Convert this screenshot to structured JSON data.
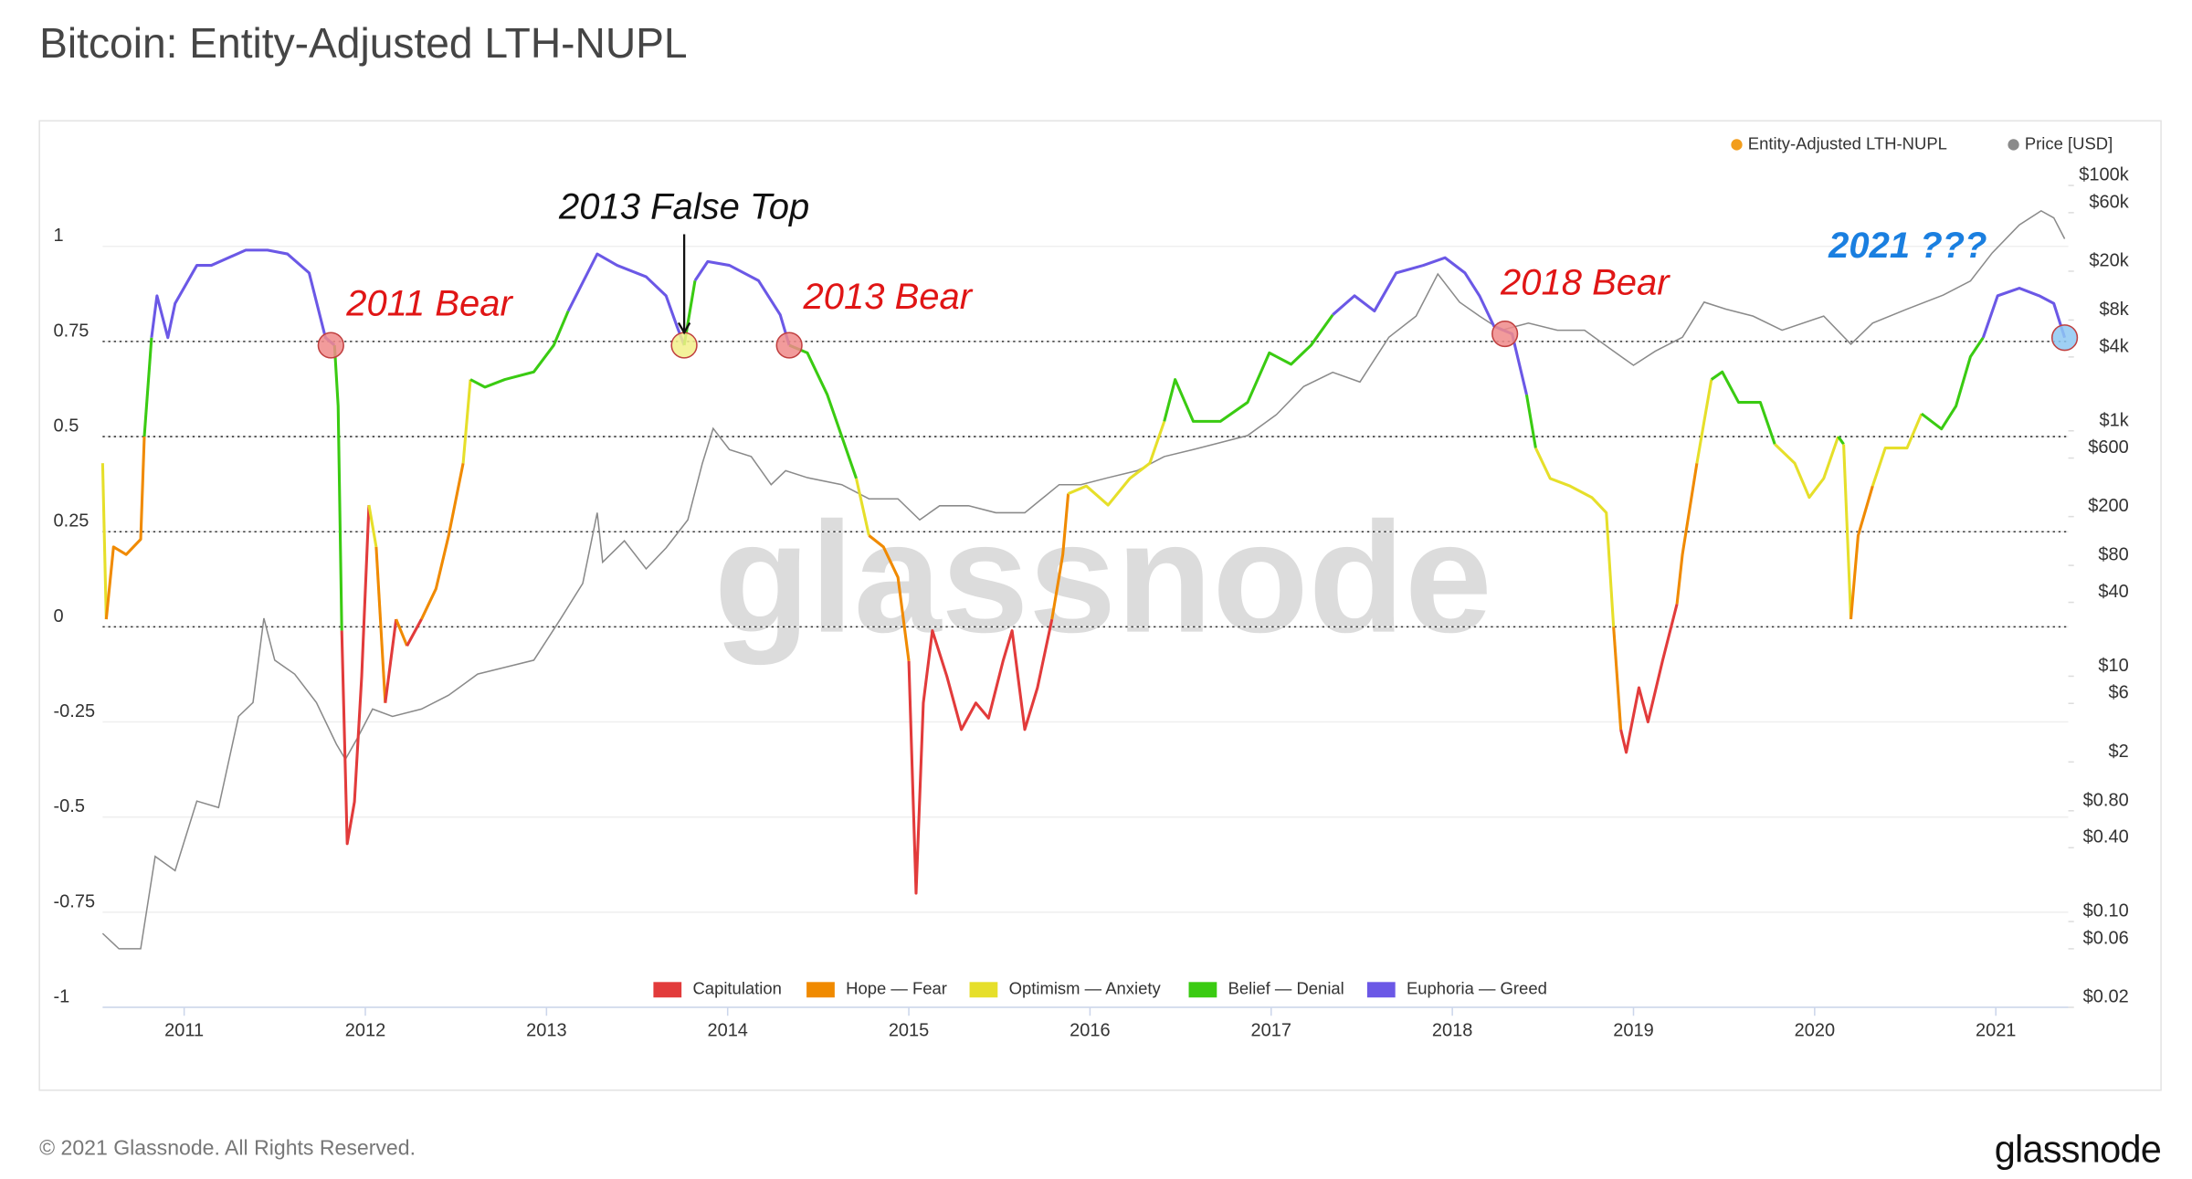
{
  "chart_data": {
    "type": "line",
    "title": "Bitcoin: Entity-Adjusted LTH-NUPL",
    "watermark": "glassnode",
    "xlim": [
      2010.55,
      2021.4
    ],
    "xticks": [
      2011,
      2012,
      2013,
      2014,
      2015,
      2016,
      2017,
      2018,
      2019,
      2020,
      2021
    ],
    "ylim": [
      -1,
      1.16
    ],
    "yticks": [
      -1,
      -0.75,
      -0.5,
      -0.25,
      0,
      0.25,
      0.5,
      0.75,
      1
    ],
    "y2lim": [
      0.02,
      100000
    ],
    "y2scale": "log",
    "y2ticks": [
      {
        "value": 100000,
        "label": "$100k"
      },
      {
        "value": 60000,
        "label": "$60k"
      },
      {
        "value": 20000,
        "label": "$20k"
      },
      {
        "value": 8000,
        "label": "$8k"
      },
      {
        "value": 4000,
        "label": "$4k"
      },
      {
        "value": 1000,
        "label": "$1k"
      },
      {
        "value": 600,
        "label": "$600"
      },
      {
        "value": 200,
        "label": "$200"
      },
      {
        "value": 80,
        "label": "$80"
      },
      {
        "value": 40,
        "label": "$40"
      },
      {
        "value": 10,
        "label": "$10"
      },
      {
        "value": 6,
        "label": "$6"
      },
      {
        "value": 2,
        "label": "$2"
      },
      {
        "value": 0.8,
        "label": "$0.80"
      },
      {
        "value": 0.4,
        "label": "$0.40"
      },
      {
        "value": 0.1,
        "label": "$0.10"
      },
      {
        "value": 0.06,
        "label": "$0.06"
      },
      {
        "value": 0.02,
        "label": "$0.02"
      }
    ],
    "grid": true,
    "legend": "top-right",
    "series": [
      {
        "name": "Entity-Adjusted LTH-NUPL",
        "color": "#f29d1c",
        "x": [
          2010.55,
          2010.57,
          2010.61,
          2010.68,
          2010.76,
          2010.78,
          2010.82,
          2010.85,
          2010.91,
          2010.95,
          2011.07,
          2011.15,
          2011.34,
          2011.46,
          2011.57,
          2011.69,
          2011.78,
          2011.83,
          2011.85,
          2011.87,
          2011.9,
          2011.94,
          2011.98,
          2012.02,
          2012.06,
          2012.11,
          2012.17,
          2012.23,
          2012.31,
          2012.39,
          2012.46,
          2012.54,
          2012.58,
          2012.66,
          2012.77,
          2012.93,
          2013.04,
          2013.12,
          2013.28,
          2013.39,
          2013.55,
          2013.66,
          2013.72,
          2013.76,
          2013.82,
          2013.89,
          2014.01,
          2014.17,
          2014.29,
          2014.34,
          2014.44,
          2014.55,
          2014.63,
          2014.71,
          2014.78,
          2014.86,
          2014.94,
          2015.0,
          2015.04,
          2015.08,
          2015.13,
          2015.21,
          2015.29,
          2015.37,
          2015.44,
          2015.52,
          2015.57,
          2015.64,
          2015.71,
          2015.79,
          2015.85,
          2015.88,
          2015.98,
          2016.1,
          2016.22,
          2016.33,
          2016.41,
          2016.47,
          2016.57,
          2016.72,
          2016.87,
          2016.99,
          2017.11,
          2017.22,
          2017.34,
          2017.46,
          2017.57,
          2017.69,
          2017.84,
          2017.96,
          2018.07,
          2018.15,
          2018.23,
          2018.33,
          2018.41,
          2018.46,
          2018.54,
          2018.65,
          2018.77,
          2018.85,
          2018.89,
          2018.93,
          2018.96,
          2019.03,
          2019.08,
          2019.16,
          2019.24,
          2019.27,
          2019.35,
          2019.43,
          2019.49,
          2019.58,
          2019.7,
          2019.78,
          2019.89,
          2019.97,
          2020.05,
          2020.13,
          2020.16,
          2020.2,
          2020.24,
          2020.32,
          2020.39,
          2020.51,
          2020.59,
          2020.7,
          2020.78,
          2020.86,
          2020.93,
          2021.01,
          2021.13,
          2021.24,
          2021.32,
          2021.38
        ],
        "values": [
          0.43,
          0.02,
          0.21,
          0.19,
          0.23,
          0.5,
          0.76,
          0.87,
          0.76,
          0.85,
          0.95,
          0.95,
          0.99,
          0.99,
          0.98,
          0.93,
          0.76,
          0.74,
          0.58,
          -0.01,
          -0.57,
          -0.46,
          -0.13,
          0.32,
          0.21,
          -0.2,
          0.02,
          -0.05,
          0.02,
          0.1,
          0.24,
          0.43,
          0.65,
          0.63,
          0.65,
          0.67,
          0.74,
          0.83,
          0.98,
          0.95,
          0.92,
          0.87,
          0.79,
          0.74,
          0.91,
          0.96,
          0.95,
          0.91,
          0.82,
          0.74,
          0.72,
          0.61,
          0.5,
          0.39,
          0.24,
          0.21,
          0.13,
          -0.09,
          -0.7,
          -0.2,
          -0.01,
          -0.13,
          -0.27,
          -0.2,
          -0.24,
          -0.09,
          -0.01,
          -0.27,
          -0.16,
          0.02,
          0.19,
          0.35,
          0.37,
          0.32,
          0.39,
          0.43,
          0.54,
          0.65,
          0.54,
          0.54,
          0.59,
          0.72,
          0.69,
          0.74,
          0.82,
          0.87,
          0.83,
          0.93,
          0.95,
          0.97,
          0.93,
          0.87,
          0.79,
          0.77,
          0.61,
          0.47,
          0.39,
          0.37,
          0.34,
          0.3,
          0,
          -0.27,
          -0.33,
          -0.16,
          -0.25,
          -0.09,
          0.06,
          0.19,
          0.43,
          0.65,
          0.67,
          0.59,
          0.59,
          0.48,
          0.43,
          0.34,
          0.39,
          0.5,
          0.48,
          0.02,
          0.24,
          0.37,
          0.47,
          0.47,
          0.56,
          0.52,
          0.58,
          0.71,
          0.76,
          0.87,
          0.89,
          0.87,
          0.85,
          0.76
        ]
      },
      {
        "name": "Price [USD]",
        "color": "#8a8a8a",
        "axis": "y2",
        "x": [
          2010.55,
          2010.64,
          2010.76,
          2010.84,
          2010.95,
          2011.07,
          2011.19,
          2011.3,
          2011.38,
          2011.44,
          2011.5,
          2011.61,
          2011.73,
          2011.84,
          2011.89,
          2011.96,
          2012.04,
          2012.15,
          2012.31,
          2012.46,
          2012.62,
          2012.77,
          2012.93,
          2013.08,
          2013.2,
          2013.28,
          2013.31,
          2013.43,
          2013.55,
          2013.66,
          2013.78,
          2013.86,
          2013.92,
          2014.01,
          2014.13,
          2014.24,
          2014.32,
          2014.44,
          2014.63,
          2014.78,
          2014.94,
          2015.06,
          2015.17,
          2015.33,
          2015.48,
          2015.64,
          2015.83,
          2015.95,
          2016.1,
          2016.26,
          2016.41,
          2016.57,
          2016.72,
          2016.87,
          2017.03,
          2017.18,
          2017.34,
          2017.49,
          2017.65,
          2017.8,
          2017.92,
          2018.04,
          2018.15,
          2018.27,
          2018.42,
          2018.58,
          2018.73,
          2018.89,
          2019.0,
          2019.12,
          2019.27,
          2019.39,
          2019.51,
          2019.66,
          2019.82,
          2020.05,
          2020.2,
          2020.32,
          2020.51,
          2020.71,
          2020.86,
          2020.98,
          2021.13,
          2021.25,
          2021.32,
          2021.38
        ],
        "values": [
          0.08,
          0.06,
          0.06,
          0.34,
          0.26,
          0.96,
          0.85,
          4.7,
          6.1,
          29.7,
          13.5,
          10.4,
          6.1,
          2.8,
          2.1,
          3.2,
          5.4,
          4.7,
          5.4,
          7,
          10.4,
          11.8,
          13.5,
          29.7,
          57,
          215,
          85,
          127,
          75,
          111,
          188,
          541,
          1045,
          703,
          617,
          364,
          473,
          415,
          364,
          279,
          279,
          188,
          245,
          245,
          215,
          215,
          364,
          364,
          415,
          473,
          617,
          703,
          802,
          916,
          1359,
          2301,
          2999,
          2500,
          5794,
          8610,
          18970,
          11190,
          8610,
          6607,
          7550,
          6607,
          6607,
          4457,
          3420,
          4457,
          5794,
          11190,
          9820,
          8610,
          6607,
          8610,
          5080,
          7550,
          9820,
          12790,
          16640,
          28180,
          47750,
          62090,
          54450,
          36730
        ]
      }
    ],
    "zones": [
      {
        "name": "Capitulation",
        "color": "#e23b3b",
        "min": -1
      },
      {
        "name": "Hope — Fear",
        "color": "#f08a00",
        "min": 0
      },
      {
        "name": "Optimism — Anxiety",
        "color": "#e6df2a",
        "min": 0.25
      },
      {
        "name": "Belief — Denial",
        "color": "#3acb12",
        "min": 0.5
      },
      {
        "name": "Euphoria — Greed",
        "color": "#6b58e6",
        "min": 0.75
      }
    ],
    "annotations": [
      {
        "text": "2011 Bear",
        "x": 2011.81,
        "y": 0.74,
        "color": "#e01515",
        "marker_color": "#f08a8a"
      },
      {
        "text": "2013 False Top",
        "x": 2013.76,
        "y": 0.74,
        "color": "#111111",
        "marker_color": "#f2f08a"
      },
      {
        "text": "2013 Bear",
        "x": 2014.34,
        "y": 0.74,
        "color": "#e01515",
        "marker_color": "#f08a8a"
      },
      {
        "text": "2018 Bear",
        "x": 2018.29,
        "y": 0.77,
        "color": "#e01515",
        "marker_color": "#f08a8a"
      },
      {
        "text": "2021 ???",
        "x": 2021.38,
        "y": 0.76,
        "color": "#1a7fe0",
        "marker_color": "#8ec8f2"
      }
    ]
  },
  "footer": {
    "copyright": "© 2021 Glassnode. All Rights Reserved.",
    "logo": "glassnode"
  }
}
